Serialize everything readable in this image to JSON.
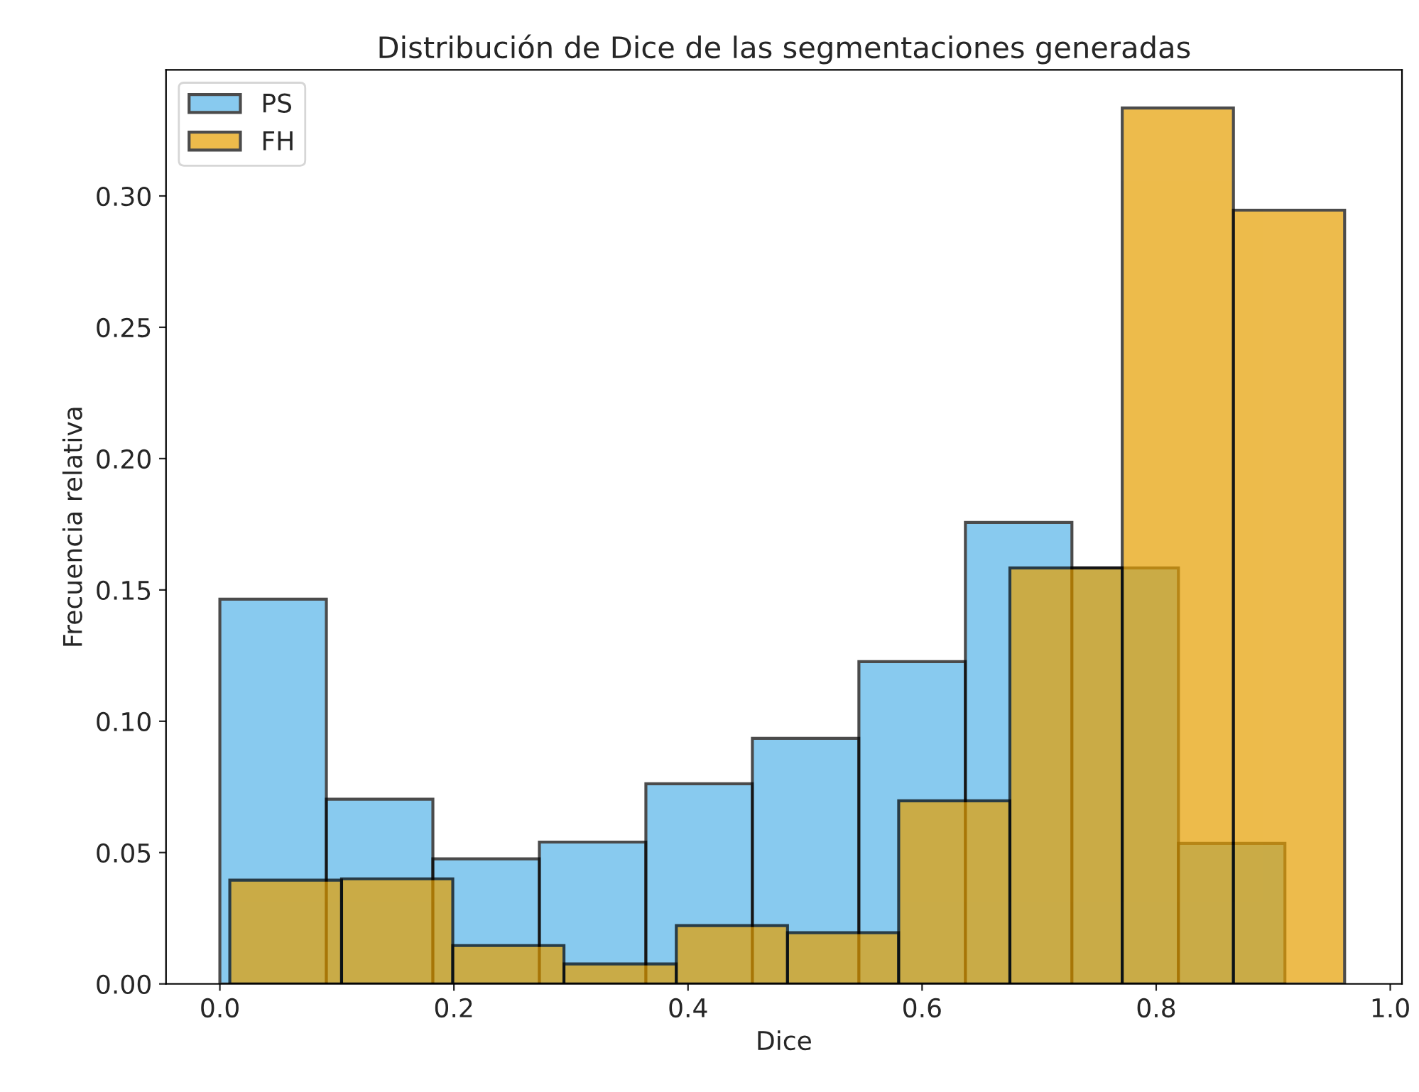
{
  "chart_data": {
    "type": "histogram",
    "title": "Distribución de Dice de las segmentaciones generadas",
    "xlabel": "Dice",
    "ylabel": "Frecuencia relativa",
    "bins": [
      0.0,
      0.091,
      0.182,
      0.273,
      0.364,
      0.455,
      0.546,
      0.637,
      0.728,
      0.819,
      0.91
    ],
    "series": [
      {
        "name": "PS",
        "color": "#56b4e9",
        "values": [
          0.1465,
          0.0703,
          0.0476,
          0.054,
          0.0762,
          0.0935,
          0.1227,
          0.1757,
          0.1584,
          0.0535
        ]
      },
      {
        "name": "FH",
        "color": "#e69f00",
        "bins": [
          0.0085,
          0.104,
          0.199,
          0.294,
          0.39,
          0.485,
          0.58,
          0.675,
          0.771,
          0.866,
          0.961
        ],
        "values": [
          0.0395,
          0.04,
          0.0146,
          0.0076,
          0.0222,
          0.0195,
          0.0697,
          0.1584,
          0.3335,
          0.2946
        ]
      }
    ],
    "xlim": [
      -0.046,
      1.01
    ],
    "ylim": [
      0,
      0.348
    ],
    "xticks": [
      {
        "value": 0,
        "label": "0.0"
      },
      {
        "value": 0.2,
        "label": "0.2"
      },
      {
        "value": 0.4,
        "label": "0.4"
      },
      {
        "value": 0.6,
        "label": "0.6"
      },
      {
        "value": 0.8,
        "label": "0.8"
      },
      {
        "value": 1,
        "label": "1.0"
      }
    ],
    "yticks": [
      {
        "value": 0,
        "label": "0.00"
      },
      {
        "value": 0.05,
        "label": "0.05"
      },
      {
        "value": 0.1,
        "label": "0.10"
      },
      {
        "value": 0.15,
        "label": "0.15"
      },
      {
        "value": 0.2,
        "label": "0.20"
      },
      {
        "value": 0.25,
        "label": "0.25"
      },
      {
        "value": 0.3,
        "label": "0.30"
      }
    ],
    "grid": false,
    "legend": "top left"
  }
}
